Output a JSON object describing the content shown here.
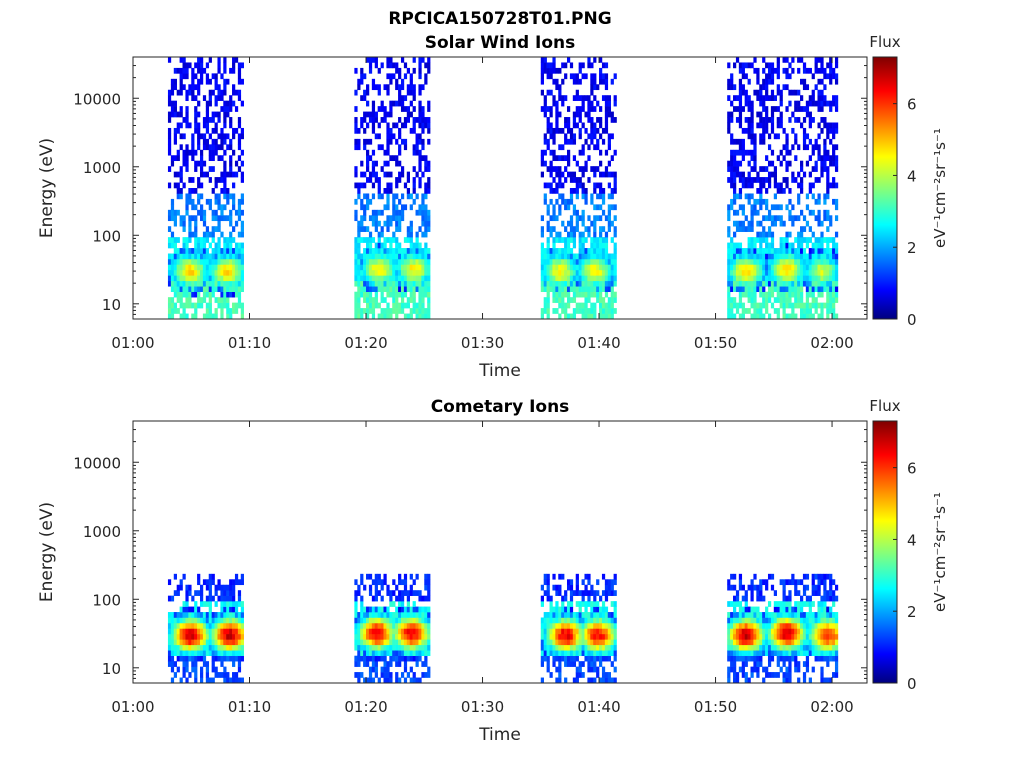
{
  "figure_title": "RPCICA150728T01.PNG",
  "chart_data": [
    {
      "type": "heatmap",
      "title": "Solar Wind Ions",
      "xlabel": "Time",
      "ylabel": "Energy (eV)",
      "x_range_minutes": [
        0,
        63
      ],
      "x_ticks": [
        {
          "value": 0,
          "label": "01:00"
        },
        {
          "value": 10,
          "label": "01:10"
        },
        {
          "value": 20,
          "label": "01:20"
        },
        {
          "value": 30,
          "label": "01:30"
        },
        {
          "value": 40,
          "label": "01:40"
        },
        {
          "value": 50,
          "label": "01:50"
        },
        {
          "value": 60,
          "label": "02:00"
        }
      ],
      "y_scale": "log",
      "ylim": [
        6,
        40000
      ],
      "y_ticks": [
        {
          "value": 10,
          "label": "10"
        },
        {
          "value": 100,
          "label": "100"
        },
        {
          "value": 1000,
          "label": "1000"
        },
        {
          "value": 10000,
          "label": "10000"
        }
      ],
      "colorbar": {
        "title": "Flux",
        "label": "eV⁻¹cm⁻²sr⁻¹s⁻¹",
        "range": [
          0,
          7.3
        ],
        "ticks": [
          {
            "value": 0,
            "label": "0"
          },
          {
            "value": 2,
            "label": "2"
          },
          {
            "value": 4,
            "label": "4"
          },
          {
            "value": 6,
            "label": "6"
          }
        ]
      },
      "intervals": [
        [
          3,
          9.3
        ],
        [
          19,
          25.5
        ],
        [
          35,
          41.5
        ],
        [
          51,
          60.5
        ]
      ],
      "hot_spots": [
        {
          "t": 4.8,
          "e": 30,
          "value": 4.8
        },
        {
          "t": 8.0,
          "e": 30,
          "value": 4.8
        },
        {
          "t": 21.0,
          "e": 32,
          "value": 4.6
        },
        {
          "t": 24.0,
          "e": 32,
          "value": 4.6
        },
        {
          "t": 36.5,
          "e": 30,
          "value": 4.6
        },
        {
          "t": 39.5,
          "e": 30,
          "value": 4.6
        },
        {
          "t": 52.5,
          "e": 30,
          "value": 4.8
        },
        {
          "t": 56.0,
          "e": 32,
          "value": 4.8
        },
        {
          "t": 59.0,
          "e": 30,
          "value": 4.2
        }
      ]
    },
    {
      "type": "heatmap",
      "title": "Cometary Ions",
      "xlabel": "Time",
      "ylabel": "Energy (eV)",
      "x_range_minutes": [
        0,
        63
      ],
      "x_ticks": [
        {
          "value": 0,
          "label": "01:00"
        },
        {
          "value": 10,
          "label": "01:10"
        },
        {
          "value": 20,
          "label": "01:20"
        },
        {
          "value": 30,
          "label": "01:30"
        },
        {
          "value": 40,
          "label": "01:40"
        },
        {
          "value": 50,
          "label": "01:50"
        },
        {
          "value": 60,
          "label": "02:00"
        }
      ],
      "y_scale": "log",
      "ylim": [
        6,
        40000
      ],
      "y_ticks": [
        {
          "value": 10,
          "label": "10"
        },
        {
          "value": 100,
          "label": "100"
        },
        {
          "value": 1000,
          "label": "1000"
        },
        {
          "value": 10000,
          "label": "10000"
        }
      ],
      "colorbar": {
        "title": "Flux",
        "label": "eV⁻¹cm⁻²sr⁻¹s⁻¹",
        "range": [
          0,
          7.3
        ],
        "ticks": [
          {
            "value": 0,
            "label": "0"
          },
          {
            "value": 2,
            "label": "2"
          },
          {
            "value": 4,
            "label": "4"
          },
          {
            "value": 6,
            "label": "6"
          }
        ]
      },
      "intervals": [
        [
          3,
          9.3
        ],
        [
          19,
          25.5
        ],
        [
          35,
          41.5
        ],
        [
          51,
          60.5
        ]
      ],
      "hot_spots": [
        {
          "t": 4.8,
          "e": 30,
          "value": 6.8
        },
        {
          "t": 8.2,
          "e": 30,
          "value": 6.8
        },
        {
          "t": 20.8,
          "e": 32,
          "value": 6.6
        },
        {
          "t": 23.8,
          "e": 32,
          "value": 6.6
        },
        {
          "t": 37.0,
          "e": 30,
          "value": 6.6
        },
        {
          "t": 39.8,
          "e": 30,
          "value": 6.4
        },
        {
          "t": 52.5,
          "e": 30,
          "value": 6.8
        },
        {
          "t": 56.0,
          "e": 32,
          "value": 6.8
        },
        {
          "t": 59.5,
          "e": 30,
          "value": 6.2
        }
      ]
    }
  ]
}
